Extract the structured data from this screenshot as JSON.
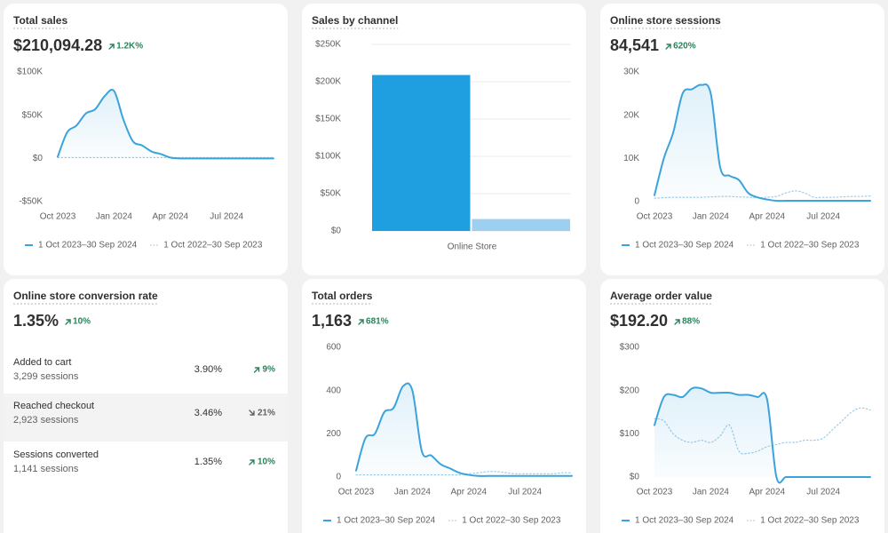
{
  "chart_data": [
    {
      "type": "line",
      "title": "Total sales",
      "total": "$210,094.28",
      "change": "1.2K%",
      "categories": [
        "Oct 2023",
        null,
        null,
        null,
        null,
        null,
        "Jan 2024",
        null,
        null,
        null,
        null,
        null,
        "Apr 2024",
        null,
        null,
        null,
        null,
        null,
        "Jul 2024",
        null,
        null,
        null,
        null,
        null
      ],
      "series": [
        {
          "name": "1 Oct 2023–30 Sep 2024",
          "color": "#3ba3dc",
          "style": "solid",
          "values": [
            2000,
            30000,
            38000,
            52000,
            57000,
            72000,
            78000,
            45000,
            20000,
            15000,
            8000,
            5000,
            1000,
            0,
            0,
            0,
            0,
            0,
            0,
            0,
            0,
            0,
            0,
            0
          ]
        },
        {
          "name": "1 Oct 2022–30 Sep 2023",
          "color": "#9fcbe6",
          "style": "dotted",
          "values": [
            1000,
            1000,
            1000,
            1000,
            1000,
            1000,
            1000,
            1000,
            1000,
            1000,
            1000,
            1000,
            1000,
            1000,
            1000,
            1000,
            1000,
            1000,
            1000,
            1000,
            1000,
            1000,
            1000,
            1000
          ]
        }
      ],
      "ylim": [
        -50000,
        100000
      ],
      "yticks": [
        {
          "value": -50000,
          "label": "-$50K"
        },
        {
          "value": 0,
          "label": "$0"
        },
        {
          "value": 50000,
          "label": "$50K"
        },
        {
          "value": 100000,
          "label": "$100K"
        }
      ],
      "grid": false
    },
    {
      "type": "bar",
      "title": "Sales by channel",
      "categories": [
        "Online Store"
      ],
      "series": [
        {
          "color": "#1f9ee0",
          "values": [
            209000
          ]
        },
        {
          "color": "#9dcff0",
          "values": [
            16000
          ]
        }
      ],
      "ylim": [
        0,
        250000
      ],
      "yticks": [
        {
          "value": 0,
          "label": "$0"
        },
        {
          "value": 50000,
          "label": "$50K"
        },
        {
          "value": 100000,
          "label": "$100K"
        },
        {
          "value": 150000,
          "label": "$150K"
        },
        {
          "value": 200000,
          "label": "$200K"
        },
        {
          "value": 250000,
          "label": "$250K"
        }
      ],
      "grid": true
    },
    {
      "type": "line",
      "title": "Online store sessions",
      "total": "84,541",
      "change": "620%",
      "categories": [
        "Oct 2023",
        null,
        null,
        null,
        null,
        null,
        "Jan 2024",
        null,
        null,
        null,
        null,
        null,
        "Apr 2024",
        null,
        null,
        null,
        null,
        null,
        "Jul 2024",
        null,
        null,
        null,
        null,
        null
      ],
      "series": [
        {
          "name": "1 Oct 2023–30 Sep 2024",
          "color": "#3ba3dc",
          "style": "solid",
          "values": [
            1500,
            10000,
            16000,
            25000,
            26000,
            27000,
            25000,
            8000,
            6000,
            5000,
            2000,
            1000,
            500,
            200,
            200,
            200,
            200,
            200,
            200,
            200,
            200,
            200,
            200,
            200
          ]
        },
        {
          "name": "1 Oct 2022–30 Sep 2023",
          "color": "#9fcbe6",
          "style": "dotted",
          "values": [
            800,
            900,
            1000,
            1000,
            1000,
            1000,
            1100,
            1200,
            1200,
            1100,
            1000,
            900,
            1000,
            1200,
            2000,
            2500,
            2000,
            1000,
            1000,
            1000,
            1100,
            1200,
            1200,
            1300
          ]
        }
      ],
      "ylim": [
        0,
        30000
      ],
      "yticks": [
        0,
        {
          "value": 10000,
          "label": "10K"
        },
        {
          "value": 20000,
          "label": "20K"
        },
        {
          "value": 30000,
          "label": "30K"
        }
      ],
      "grid": false
    },
    {
      "type": "line",
      "title": "Total orders",
      "total": "1,163",
      "change": "681%",
      "categories": [
        "Oct 2023",
        null,
        null,
        null,
        null,
        null,
        "Jan 2024",
        null,
        null,
        null,
        null,
        null,
        "Apr 2024",
        null,
        null,
        null,
        null,
        null,
        "Jul 2024",
        null,
        null,
        null,
        null,
        null
      ],
      "series": [
        {
          "name": "1 Oct 2023–30 Sep 2024",
          "color": "#3ba3dc",
          "style": "solid",
          "values": [
            30,
            180,
            200,
            300,
            320,
            420,
            400,
            120,
            100,
            60,
            40,
            20,
            10,
            5,
            5,
            5,
            5,
            5,
            5,
            5,
            5,
            5,
            5,
            5
          ]
        },
        {
          "name": "1 Oct 2022–30 Sep 2023",
          "color": "#9fcbe6",
          "style": "dotted",
          "values": [
            10,
            10,
            10,
            10,
            10,
            10,
            10,
            10,
            10,
            10,
            10,
            10,
            15,
            20,
            25,
            25,
            20,
            15,
            15,
            15,
            15,
            15,
            20,
            20
          ]
        }
      ],
      "ylim": [
        0,
        600
      ],
      "yticks": [
        0,
        200,
        400,
        600
      ],
      "grid": false
    },
    {
      "type": "line",
      "title": "Average order value",
      "total": "$192.20",
      "change": "88%",
      "categories": [
        "Oct 2023",
        null,
        null,
        null,
        null,
        null,
        "Jan 2024",
        null,
        null,
        null,
        null,
        null,
        "Apr 2024",
        null,
        null,
        null,
        null,
        null,
        "Jul 2024",
        null,
        null,
        null,
        null,
        null
      ],
      "series": [
        {
          "name": "1 Oct 2023–30 Sep 2024",
          "color": "#3ba3dc",
          "style": "solid",
          "values": [
            120,
            185,
            190,
            185,
            205,
            205,
            195,
            195,
            195,
            190,
            190,
            185,
            180,
            0,
            0,
            0,
            0,
            0,
            0,
            0,
            0,
            0,
            0,
            0
          ]
        },
        {
          "name": "1 Oct 2022–30 Sep 2023",
          "color": "#9fcbe6",
          "style": "dotted",
          "values": [
            135,
            130,
            100,
            85,
            80,
            85,
            80,
            95,
            120,
            60,
            55,
            60,
            70,
            75,
            80,
            80,
            85,
            85,
            90,
            110,
            130,
            150,
            160,
            155
          ]
        }
      ],
      "ylim": [
        0,
        300
      ],
      "yticks": [
        {
          "value": 0,
          "label": "$0"
        },
        {
          "value": 100,
          "label": "$100"
        },
        {
          "value": 200,
          "label": "$200"
        },
        {
          "value": 300,
          "label": "$300"
        }
      ],
      "grid": false
    }
  ],
  "conversion": {
    "title": "Online store conversion rate",
    "total": "1.35%",
    "change": "10%",
    "rows": [
      {
        "label": "Added to cart",
        "sessions": "3,299 sessions",
        "rate": "3.90%",
        "change": "9%",
        "direction": "up"
      },
      {
        "label": "Reached checkout",
        "sessions": "2,923 sessions",
        "rate": "3.46%",
        "change": "21%",
        "direction": "down"
      },
      {
        "label": "Sessions converted",
        "sessions": "1,141 sessions",
        "rate": "1.35%",
        "change": "10%",
        "direction": "up"
      }
    ]
  }
}
